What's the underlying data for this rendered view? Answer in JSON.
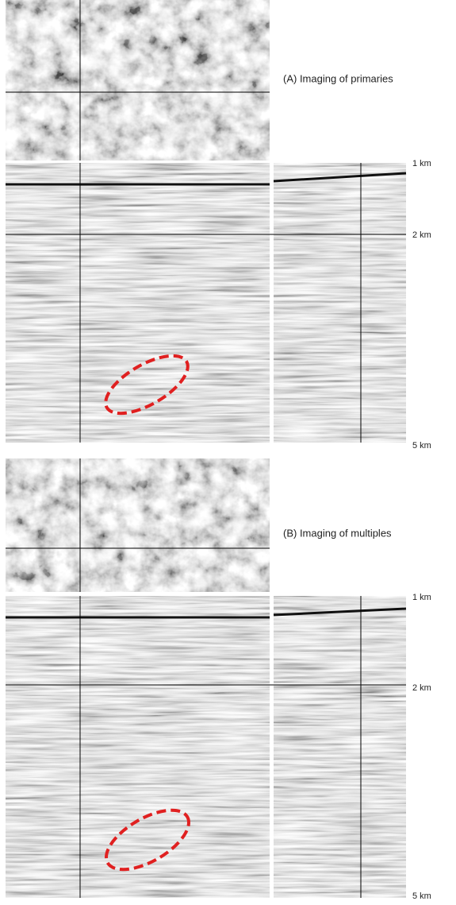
{
  "panels": [
    {
      "label": "(A) Imaging of primaries",
      "depth_labels": [
        "1 km",
        "2 km",
        "5 km"
      ]
    },
    {
      "label": "(B) Imaging of multiples",
      "depth_labels": [
        "1 km",
        "2 km",
        "5 km"
      ]
    }
  ]
}
